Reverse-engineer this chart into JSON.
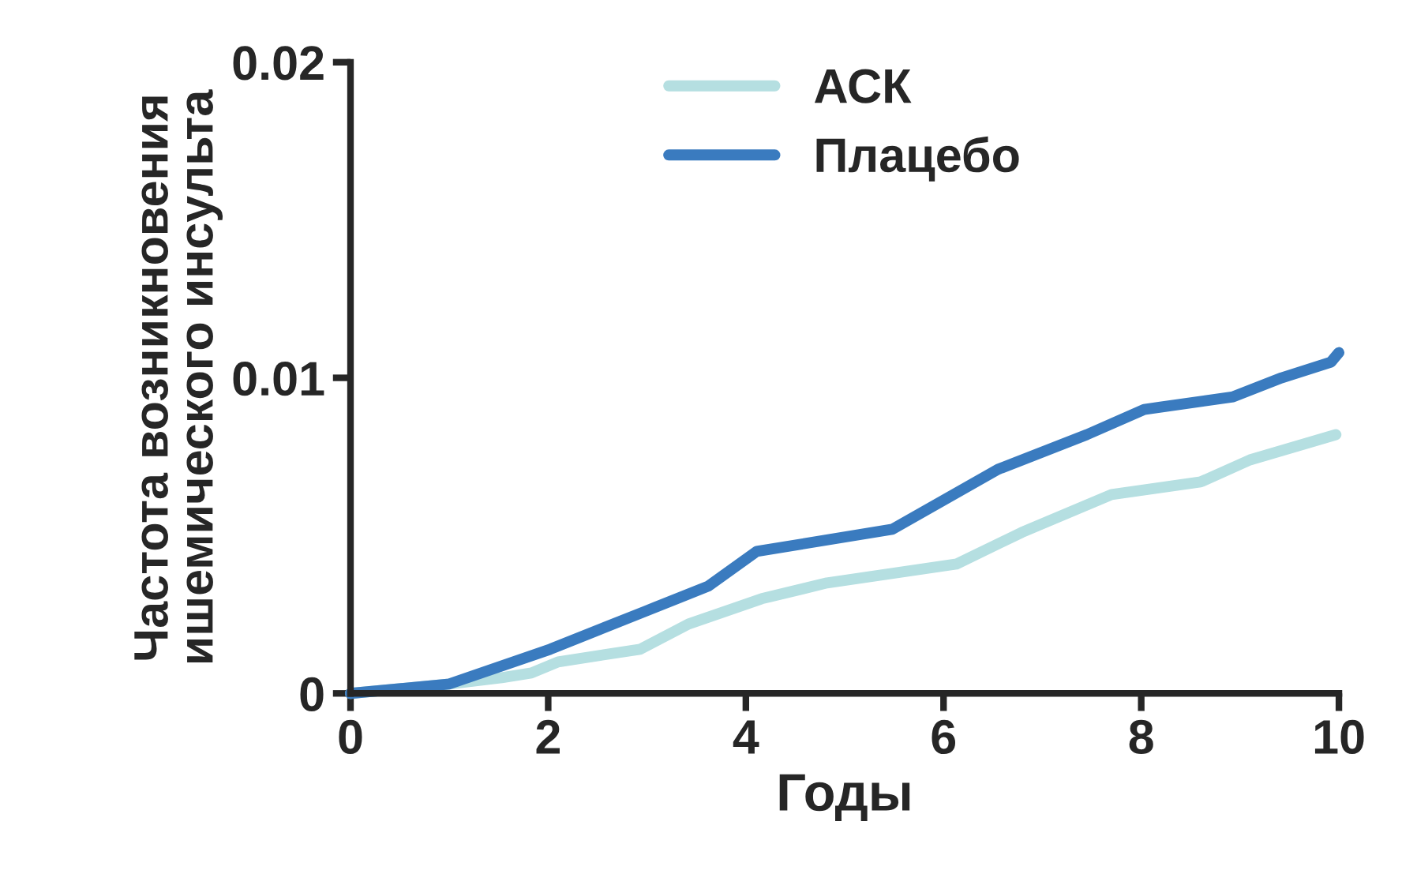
{
  "chart_data": {
    "type": "line",
    "xlabel": "Годы",
    "ylabel": "Частота возникновения\nишемического инсульта",
    "x": [
      0,
      1,
      2.02,
      2.98,
      3.62,
      4.11,
      5.48,
      6.55,
      7.45,
      8.03,
      8.93,
      9.42,
      9.92,
      10
    ],
    "series": [
      {
        "name": "АСК",
        "color": "#b5dfe1",
        "x": [
          0,
          1,
          1.53,
          1.83,
          2.1,
          2.93,
          3.42,
          4.16,
          4.82,
          6.13,
          6.79,
          7.7,
          8.6,
          9.1,
          9.97
        ],
        "values": [
          0,
          0.0003,
          0.0005,
          0.00065,
          0.001,
          0.0014,
          0.0022,
          0.003,
          0.0035,
          0.0041,
          0.0051,
          0.0063,
          0.0067,
          0.0074,
          0.0082
        ]
      },
      {
        "name": "Плацебо",
        "color": "#3a7bbf",
        "values": [
          0,
          0.0003,
          0.0014,
          0.0026,
          0.0034,
          0.0045,
          0.0052,
          0.0071,
          0.0082,
          0.009,
          0.0094,
          0.01,
          0.0105,
          0.0108
        ]
      }
    ],
    "xlim": [
      0,
      10
    ],
    "ylim": [
      0,
      0.02
    ],
    "xticks": [
      0,
      2,
      4,
      6,
      8,
      10
    ],
    "yticks": [
      0,
      0.01,
      0.02
    ],
    "grid": false,
    "legend": "top",
    "marker": "none",
    "line_style": "solid"
  }
}
